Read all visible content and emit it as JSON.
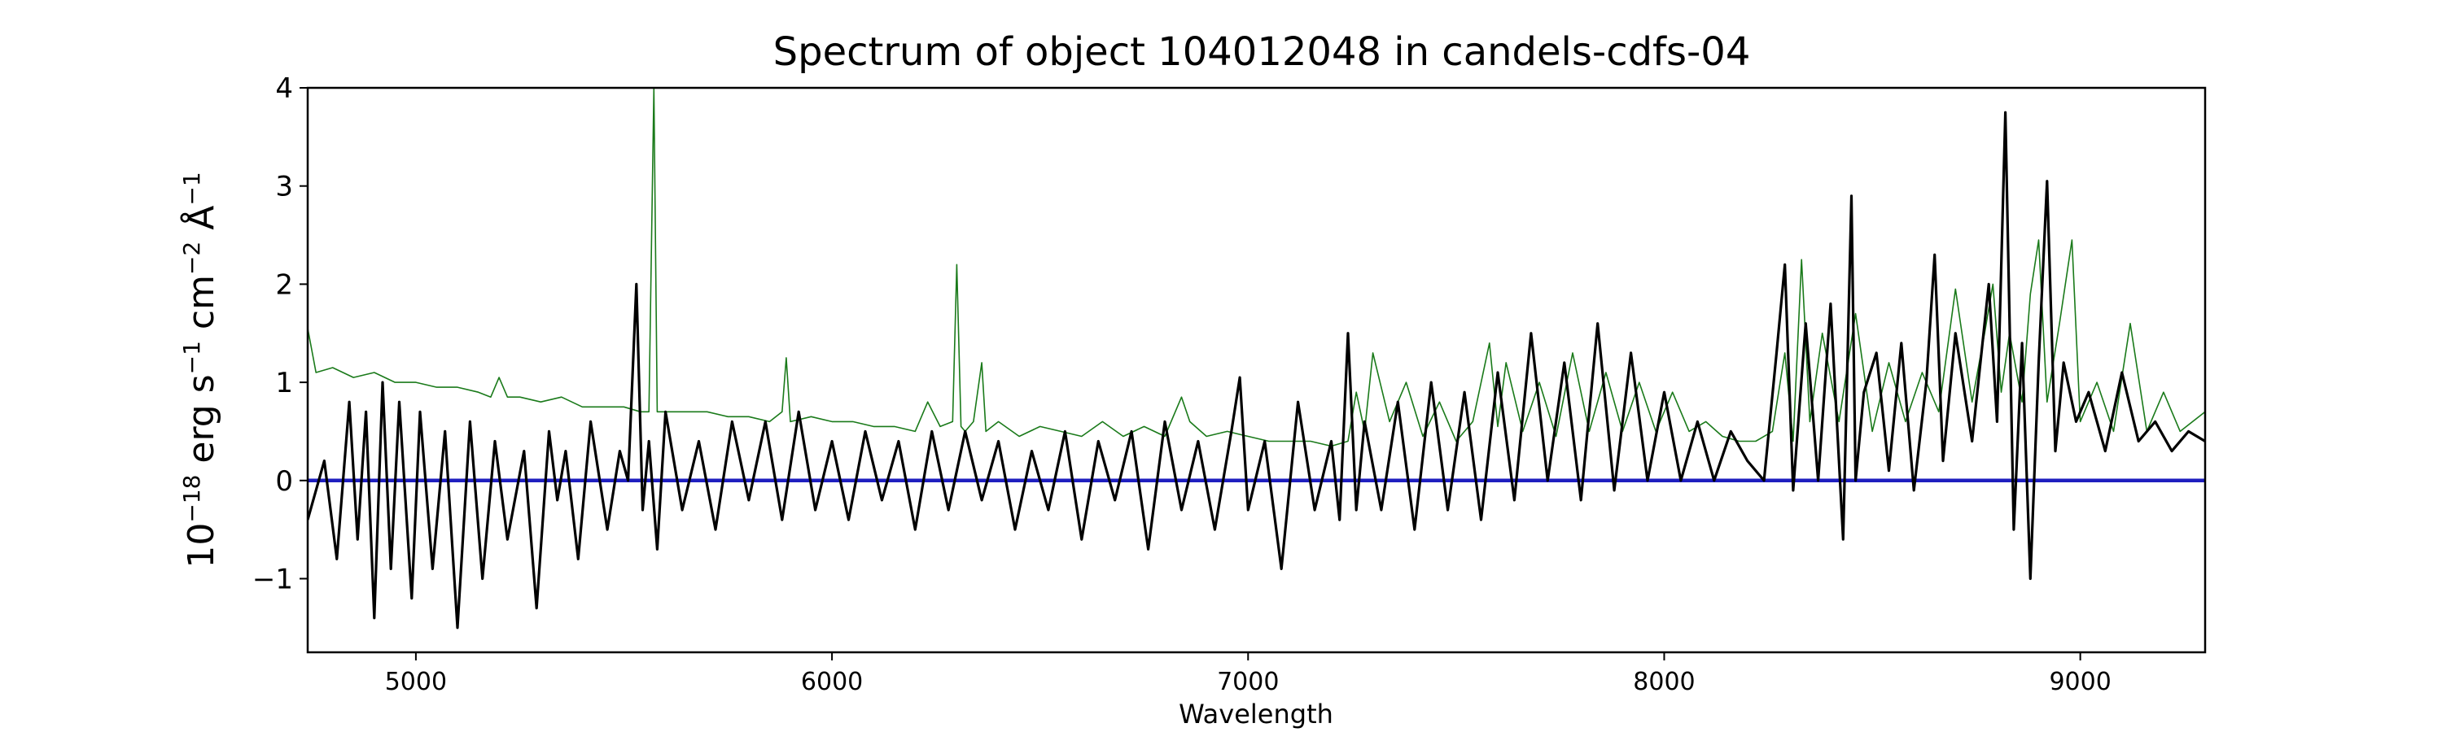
{
  "chart_data": {
    "type": "line",
    "title": "Spectrum of object 104012048 in candels-cdfs-04",
    "xlabel": "Wavelength",
    "ylabel": {
      "base": "10",
      "base_exp": "−18",
      "unit_erg": "erg s",
      "s_exp": "−1",
      "unit_cm": "cm",
      "cm_exp": "−2",
      "unit_ang": "Å",
      "ang_exp": "−1"
    },
    "xlim": [
      4740,
      9300
    ],
    "ylim": [
      -1.75,
      4.0
    ],
    "xticks": [
      5000,
      6000,
      7000,
      8000,
      9000
    ],
    "yticks": [
      -1,
      0,
      1,
      2,
      3,
      4
    ],
    "x_tick_labels": [
      "5000",
      "6000",
      "7000",
      "8000",
      "9000"
    ],
    "y_tick_labels": [
      "−1",
      "0",
      "1",
      "2",
      "3",
      "4"
    ],
    "grid": false,
    "legend": "none",
    "colors": {
      "flux": "#000000",
      "error": "#1a7a1a",
      "zero": "#1f1fbf"
    },
    "series": [
      {
        "role": "flux",
        "x": [
          4740,
          4780,
          4810,
          4840,
          4860,
          4880,
          4900,
          4920,
          4940,
          4960,
          4990,
          5010,
          5040,
          5070,
          5100,
          5130,
          5160,
          5190,
          5220,
          5260,
          5290,
          5320,
          5340,
          5360,
          5390,
          5420,
          5460,
          5490,
          5510,
          5530,
          5545,
          5560,
          5580,
          5600,
          5640,
          5680,
          5720,
          5760,
          5800,
          5840,
          5880,
          5920,
          5960,
          6000,
          6040,
          6080,
          6120,
          6160,
          6200,
          6240,
          6280,
          6320,
          6360,
          6400,
          6440,
          6480,
          6520,
          6560,
          6600,
          6640,
          6680,
          6720,
          6760,
          6800,
          6840,
          6880,
          6920,
          6960,
          6980,
          7000,
          7040,
          7080,
          7120,
          7160,
          7200,
          7220,
          7240,
          7260,
          7280,
          7320,
          7360,
          7400,
          7440,
          7480,
          7520,
          7560,
          7600,
          7640,
          7680,
          7720,
          7760,
          7800,
          7840,
          7880,
          7920,
          7960,
          8000,
          8040,
          8080,
          8120,
          8160,
          8200,
          8240,
          8270,
          8290,
          8310,
          8340,
          8370,
          8400,
          8430,
          8450,
          8460,
          8480,
          8510,
          8540,
          8570,
          8600,
          8630,
          8650,
          8670,
          8700,
          8740,
          8780,
          8800,
          8820,
          8840,
          8860,
          8880,
          8900,
          8920,
          8940,
          8960,
          8990,
          9020,
          9060,
          9100,
          9140,
          9180,
          9220,
          9260,
          9300
        ],
        "y": [
          -0.4,
          0.2,
          -0.8,
          0.8,
          -0.6,
          0.7,
          -1.4,
          1.0,
          -0.9,
          0.8,
          -1.2,
          0.7,
          -0.9,
          0.5,
          -1.5,
          0.6,
          -1.0,
          0.4,
          -0.6,
          0.3,
          -1.3,
          0.5,
          -0.2,
          0.3,
          -0.8,
          0.6,
          -0.5,
          0.3,
          0.0,
          2.0,
          -0.3,
          0.4,
          -0.7,
          0.7,
          -0.3,
          0.4,
          -0.5,
          0.6,
          -0.2,
          0.6,
          -0.4,
          0.7,
          -0.3,
          0.4,
          -0.4,
          0.5,
          -0.2,
          0.4,
          -0.5,
          0.5,
          -0.3,
          0.5,
          -0.2,
          0.4,
          -0.5,
          0.3,
          -0.3,
          0.5,
          -0.6,
          0.4,
          -0.2,
          0.5,
          -0.7,
          0.6,
          -0.3,
          0.4,
          -0.5,
          0.5,
          1.05,
          -0.3,
          0.4,
          -0.9,
          0.8,
          -0.3,
          0.4,
          -0.4,
          1.5,
          -0.3,
          0.6,
          -0.3,
          0.8,
          -0.5,
          1.0,
          -0.3,
          0.9,
          -0.4,
          1.1,
          -0.2,
          1.5,
          0.0,
          1.2,
          -0.2,
          1.6,
          -0.1,
          1.3,
          0.0,
          0.9,
          0.0,
          0.6,
          0.0,
          0.5,
          0.2,
          0.0,
          1.3,
          2.2,
          -0.1,
          1.6,
          0.0,
          1.8,
          -0.6,
          2.9,
          0.0,
          0.9,
          1.3,
          0.1,
          1.4,
          -0.1,
          1.0,
          2.3,
          0.2,
          1.5,
          0.4,
          2.0,
          0.6,
          3.75,
          -0.5,
          1.4,
          -1.0,
          1.2,
          3.05,
          0.3,
          1.2,
          0.6,
          0.9,
          0.3,
          1.1,
          0.4,
          0.6,
          0.3,
          0.5,
          0.4
        ]
      },
      {
        "role": "error",
        "x": [
          4740,
          4760,
          4800,
          4850,
          4900,
          4950,
          5000,
          5050,
          5100,
          5150,
          5180,
          5200,
          5220,
          5250,
          5300,
          5350,
          5400,
          5450,
          5500,
          5540,
          5560,
          5572,
          5580,
          5590,
          5600,
          5650,
          5700,
          5750,
          5800,
          5850,
          5880,
          5890,
          5900,
          5950,
          6000,
          6050,
          6100,
          6150,
          6200,
          6230,
          6260,
          6290,
          6300,
          6310,
          6320,
          6340,
          6360,
          6370,
          6400,
          6450,
          6500,
          6550,
          6600,
          6650,
          6700,
          6750,
          6800,
          6840,
          6860,
          6900,
          6950,
          7000,
          7050,
          7100,
          7150,
          7200,
          7240,
          7260,
          7280,
          7300,
          7340,
          7380,
          7420,
          7460,
          7500,
          7540,
          7580,
          7600,
          7620,
          7660,
          7700,
          7740,
          7780,
          7820,
          7860,
          7900,
          7940,
          7980,
          8020,
          8060,
          8100,
          8140,
          8180,
          8220,
          8260,
          8290,
          8310,
          8330,
          8350,
          8380,
          8420,
          8460,
          8500,
          8540,
          8580,
          8620,
          8660,
          8700,
          8740,
          8770,
          8790,
          8810,
          8830,
          8860,
          8880,
          8900,
          8920,
          8950,
          8980,
          9000,
          9040,
          9080,
          9120,
          9160,
          9200,
          9240,
          9300
        ],
        "y": [
          1.55,
          1.1,
          1.15,
          1.05,
          1.1,
          1.0,
          1.0,
          0.95,
          0.95,
          0.9,
          0.85,
          1.05,
          0.85,
          0.85,
          0.8,
          0.85,
          0.75,
          0.75,
          0.75,
          0.7,
          0.7,
          4.0,
          0.7,
          0.7,
          0.7,
          0.7,
          0.7,
          0.65,
          0.65,
          0.6,
          0.7,
          1.25,
          0.6,
          0.65,
          0.6,
          0.6,
          0.55,
          0.55,
          0.5,
          0.8,
          0.55,
          0.6,
          2.2,
          0.55,
          0.5,
          0.6,
          1.2,
          0.5,
          0.6,
          0.45,
          0.55,
          0.5,
          0.45,
          0.6,
          0.45,
          0.55,
          0.45,
          0.85,
          0.6,
          0.45,
          0.5,
          0.45,
          0.4,
          0.4,
          0.4,
          0.35,
          0.4,
          0.9,
          0.5,
          1.3,
          0.6,
          1.0,
          0.45,
          0.8,
          0.4,
          0.6,
          1.4,
          0.55,
          1.2,
          0.5,
          1.0,
          0.45,
          1.3,
          0.5,
          1.1,
          0.5,
          1.0,
          0.5,
          0.9,
          0.5,
          0.6,
          0.45,
          0.4,
          0.4,
          0.5,
          1.3,
          0.4,
          2.25,
          0.6,
          1.5,
          0.6,
          1.7,
          0.5,
          1.2,
          0.6,
          1.1,
          0.7,
          1.95,
          0.8,
          1.5,
          2.0,
          0.9,
          1.5,
          0.8,
          1.9,
          2.45,
          0.8,
          1.6,
          2.45,
          0.6,
          1.0,
          0.5,
          1.6,
          0.5,
          0.9,
          0.5,
          0.7
        ]
      }
    ],
    "zero_line": 0
  }
}
